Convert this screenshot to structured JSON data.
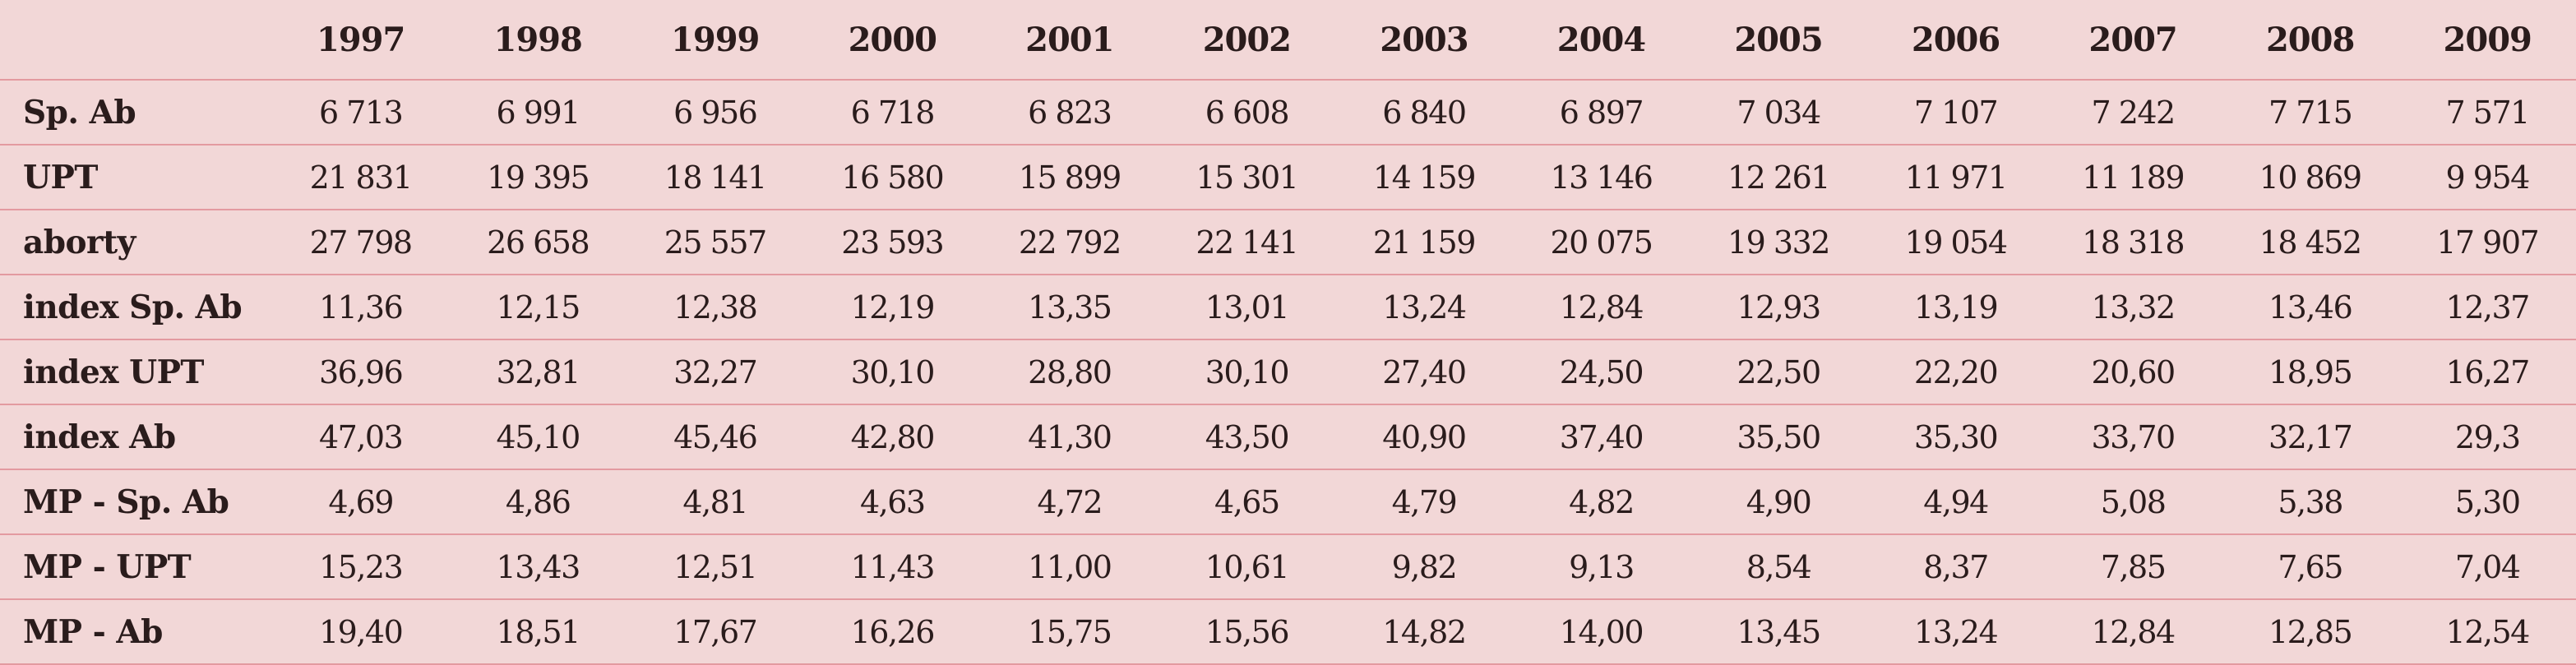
{
  "table": {
    "corner": "",
    "years": [
      "1997",
      "1998",
      "1999",
      "2000",
      "2001",
      "2002",
      "2003",
      "2004",
      "2005",
      "2006",
      "2007",
      "2008",
      "2009"
    ],
    "rows": [
      {
        "label": "Sp. Ab",
        "values": [
          "6 713",
          "6 991",
          "6 956",
          "6 718",
          "6 823",
          "6 608",
          "6 840",
          "6 897",
          "7 034",
          "7 107",
          "7 242",
          "7 715",
          "7 571"
        ]
      },
      {
        "label": "UPT",
        "values": [
          "21 831",
          "19 395",
          "18 141",
          "16 580",
          "15 899",
          "15 301",
          "14 159",
          "13 146",
          "12 261",
          "11 971",
          "11 189",
          "10 869",
          "9 954"
        ]
      },
      {
        "label": "aborty",
        "values": [
          "27 798",
          "26 658",
          "25 557",
          "23 593",
          "22 792",
          "22 141",
          "21 159",
          "20 075",
          "19 332",
          "19 054",
          "18 318",
          "18 452",
          "17 907"
        ]
      },
      {
        "label": "index Sp. Ab",
        "values": [
          "11,36",
          "12,15",
          "12,38",
          "12,19",
          "13,35",
          "13,01",
          "13,24",
          "12,84",
          "12,93",
          "13,19",
          "13,32",
          "13,46",
          "12,37"
        ]
      },
      {
        "label": "index UPT",
        "values": [
          "36,96",
          "32,81",
          "32,27",
          "30,10",
          "28,80",
          "30,10",
          "27,40",
          "24,50",
          "22,50",
          "22,20",
          "20,60",
          "18,95",
          "16,27"
        ]
      },
      {
        "label": "index Ab",
        "values": [
          "47,03",
          "45,10",
          "45,46",
          "42,80",
          "41,30",
          "43,50",
          "40,90",
          "37,40",
          "35,50",
          "35,30",
          "33,70",
          "32,17",
          "29,3"
        ]
      },
      {
        "label": "MP - Sp. Ab",
        "values": [
          "4,69",
          "4,86",
          "4,81",
          "4,63",
          "4,72",
          "4,65",
          "4,79",
          "4,82",
          "4,90",
          "4,94",
          "5,08",
          "5,38",
          "5,30"
        ]
      },
      {
        "label": "MP - UPT",
        "values": [
          "15,23",
          "13,43",
          "12,51",
          "11,43",
          "11,00",
          "10,61",
          "9,82",
          "9,13",
          "8,54",
          "8,37",
          "7,85",
          "7,65",
          "7,04"
        ]
      },
      {
        "label": "MP - Ab",
        "values": [
          "19,40",
          "18,51",
          "17,67",
          "16,26",
          "15,75",
          "15,56",
          "14,82",
          "14,00",
          "13,45",
          "13,24",
          "12,84",
          "12,85",
          "12,54"
        ]
      }
    ]
  },
  "colors": {
    "background": "#f2d7d7",
    "rule": "#e39aa0",
    "text": "#2a1c1c"
  }
}
